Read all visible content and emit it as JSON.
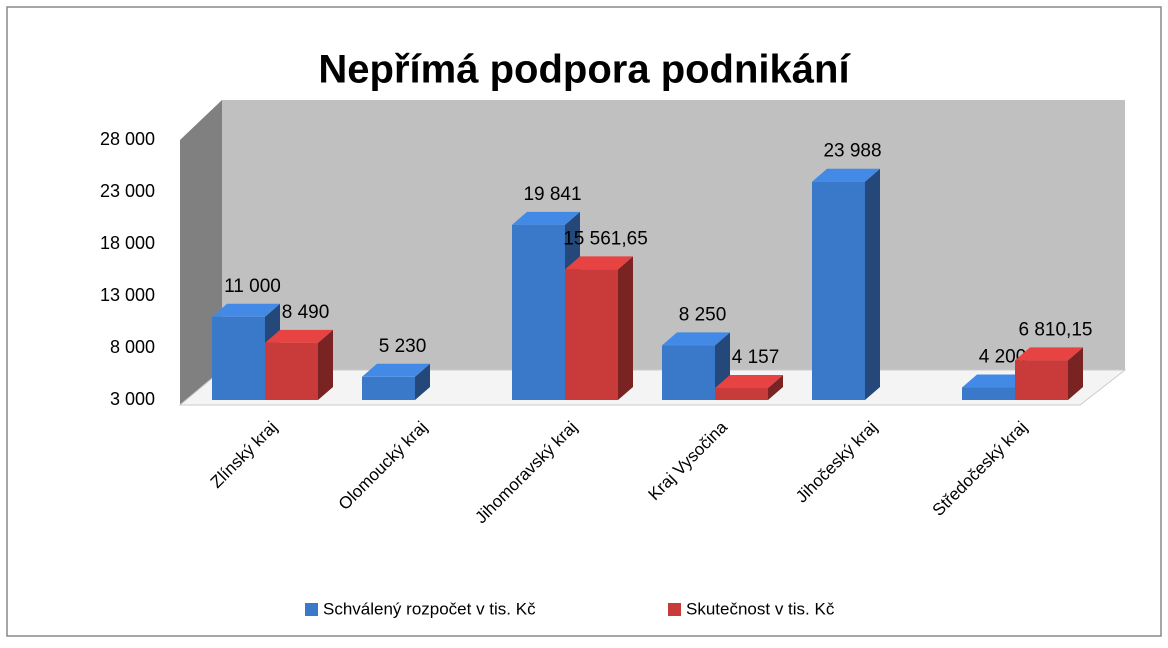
{
  "chart_data": {
    "type": "bar",
    "title": "Nepřímá podpora podnikání",
    "categories": [
      "Zlínský kraj",
      "Olomoucký kraj",
      "Jihomoravský kraj",
      "Kraj Vysočina",
      "Jihočeský kraj",
      "Středočeský kraj"
    ],
    "series": [
      {
        "name": "Schválený rozpočet v tis. Kč",
        "color": "#3a78c9",
        "values": [
          11000,
          5230,
          19841,
          8250,
          23988,
          4200
        ],
        "value_labels": [
          "11 000",
          "5 230",
          "19 841",
          "8 250",
          "23 988",
          "4 200"
        ]
      },
      {
        "name": "Skutečnost v tis. Kč",
        "color": "#c93a3a",
        "values": [
          8490,
          null,
          15561.65,
          4157,
          null,
          6810.15
        ],
        "value_labels": [
          "8 490",
          null,
          "15 561,65",
          "4 157",
          null,
          "6 810,15"
        ]
      }
    ],
    "ylim": [
      3000,
      28000
    ],
    "yticks": [
      {
        "value": 3000,
        "label": "3 000"
      },
      {
        "value": 8000,
        "label": "8 000"
      },
      {
        "value": 13000,
        "label": "13 000"
      },
      {
        "value": 18000,
        "label": "18 000"
      },
      {
        "value": 23000,
        "label": "23 000"
      },
      {
        "value": 28000,
        "label": "28 000"
      }
    ]
  }
}
